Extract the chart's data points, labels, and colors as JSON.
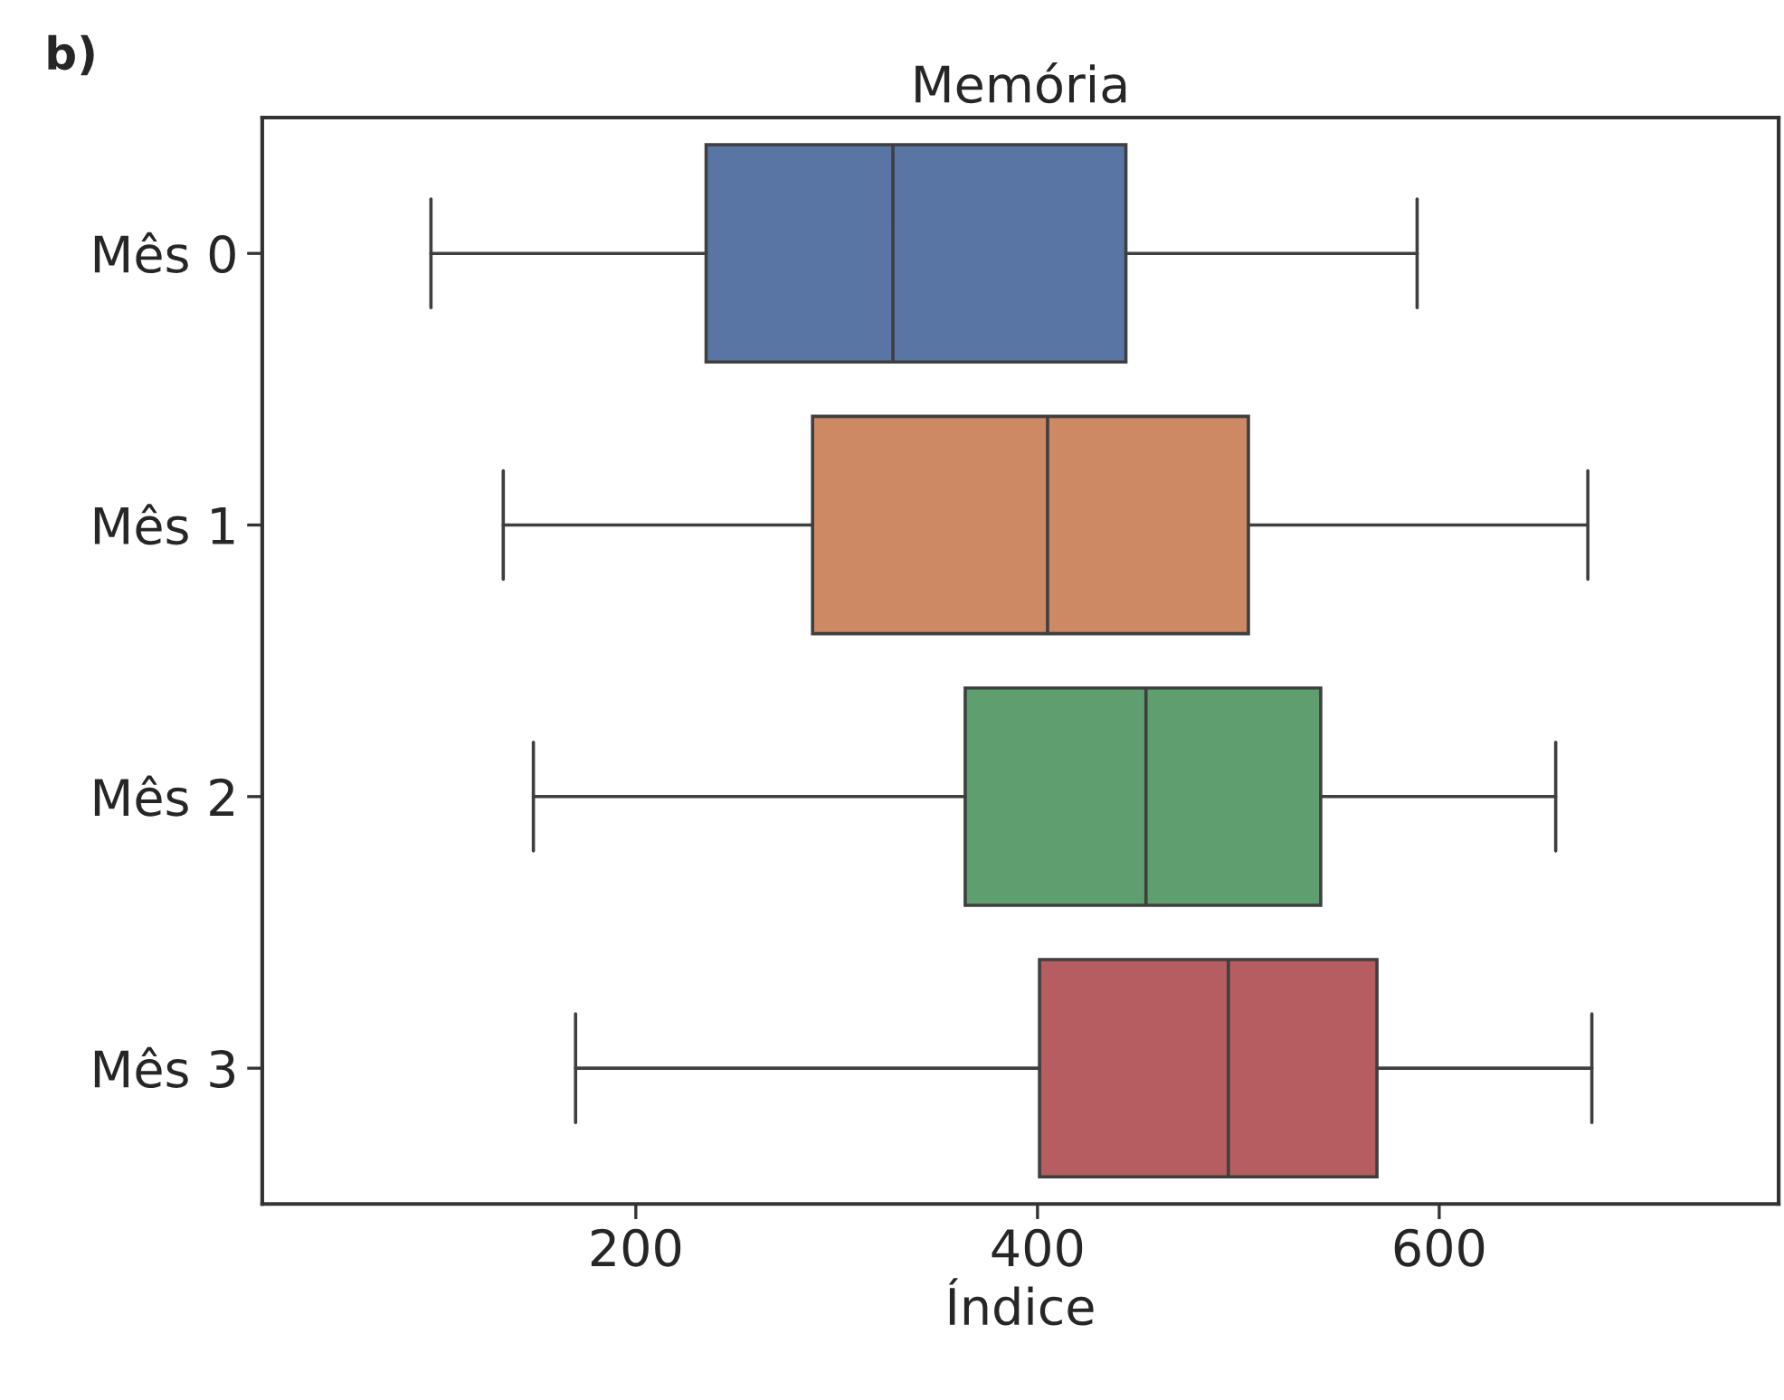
{
  "chart_data": {
    "type": "box",
    "orientation": "horizontal",
    "title": "Memória",
    "xlabel": "Índice",
    "categories": [
      "Mês 0",
      "Mês 1",
      "Mês 2",
      "Mês 3"
    ],
    "boxes": [
      {
        "low": 98,
        "q1": 235,
        "median": 328,
        "q3": 444,
        "high": 589
      },
      {
        "low": 134,
        "q1": 288,
        "median": 405,
        "q3": 505,
        "high": 674
      },
      {
        "low": 149,
        "q1": 364,
        "median": 454,
        "q3": 541,
        "high": 658
      },
      {
        "low": 170,
        "q1": 401,
        "median": 495,
        "q3": 569,
        "high": 676
      }
    ],
    "colors": [
      "#5875a4",
      "#cc8963",
      "#5f9e6e",
      "#b55d60"
    ],
    "xlim": [
      14,
      769
    ],
    "xticks": [
      200,
      400,
      600
    ],
    "annotations": [
      "b)"
    ]
  }
}
